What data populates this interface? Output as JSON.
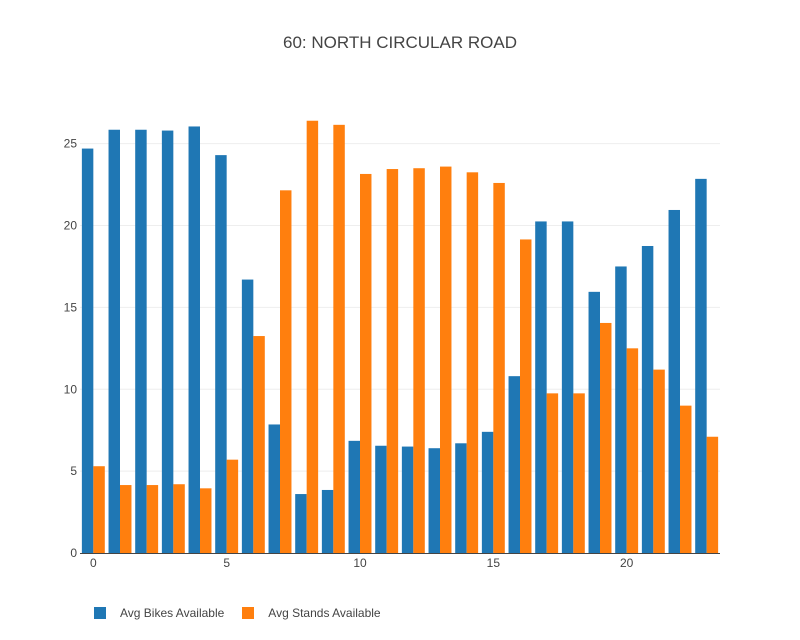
{
  "chart_data": {
    "type": "bar",
    "title": "60: NORTH CIRCULAR ROAD",
    "xlabel": "",
    "ylabel": "",
    "x": [
      0,
      1,
      2,
      3,
      4,
      5,
      6,
      7,
      8,
      9,
      10,
      11,
      12,
      13,
      14,
      15,
      16,
      17,
      18,
      19,
      20,
      21,
      22,
      23
    ],
    "xlim": [
      -0.5,
      23.5
    ],
    "ylim": [
      0,
      27.3
    ],
    "x_ticks": [
      0,
      5,
      10,
      15,
      20
    ],
    "y_ticks": [
      0,
      5,
      10,
      15,
      20,
      25
    ],
    "grid": true,
    "legend_position": "bottom-left",
    "series": [
      {
        "name": "Avg Bikes Available",
        "color": "#1f77b4",
        "values": [
          24.7,
          25.85,
          25.85,
          25.8,
          26.05,
          24.3,
          16.7,
          7.85,
          3.6,
          3.85,
          6.85,
          6.55,
          6.5,
          6.4,
          6.7,
          7.4,
          10.8,
          20.25,
          20.25,
          15.95,
          17.5,
          18.75,
          20.95,
          22.85
        ]
      },
      {
        "name": "Avg Stands Available",
        "color": "#ff7f0e",
        "values": [
          5.3,
          4.15,
          4.15,
          4.2,
          3.95,
          5.7,
          13.25,
          22.15,
          26.4,
          26.15,
          23.15,
          23.45,
          23.5,
          23.6,
          23.25,
          22.6,
          19.15,
          9.75,
          9.75,
          14.05,
          12.5,
          11.2,
          9.0,
          7.1
        ]
      }
    ]
  }
}
